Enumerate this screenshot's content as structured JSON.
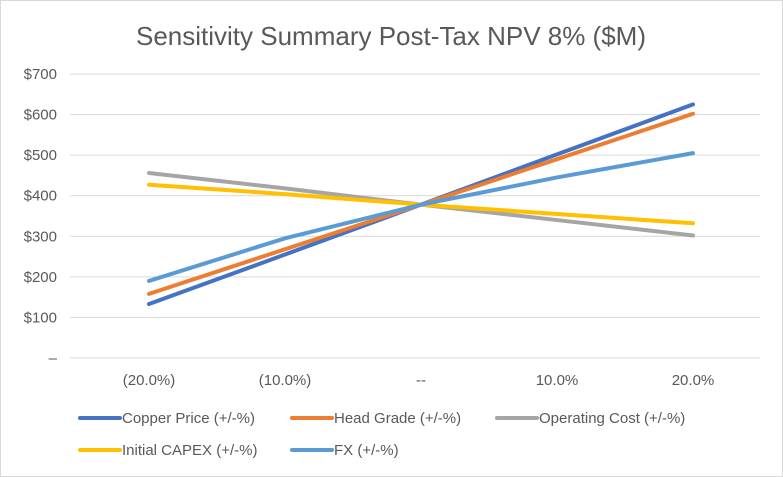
{
  "chart_data": {
    "type": "line",
    "title": "Sensitivity Summary Post-Tax NPV  8% ($M)",
    "xlabel": "",
    "ylabel": "",
    "categories": [
      "(20.0%)",
      "(10.0%)",
      "--",
      "10.0%",
      "20.0%"
    ],
    "y_ticks": [
      "–",
      "$100",
      "$200",
      "$300",
      "$400",
      "$500",
      "$600",
      "$700"
    ],
    "ylim": [
      0,
      700
    ],
    "grid": true,
    "legend_position": "bottom",
    "series": [
      {
        "name": "Copper Price (+/-%)",
        "color": "#4472c4",
        "values": [
          133,
          255,
          378,
          502,
          625
        ]
      },
      {
        "name": "Head Grade (+/-%)",
        "color": "#ed7d31",
        "values": [
          158,
          268,
          378,
          490,
          602
        ]
      },
      {
        "name": "Operating Cost (+/-%)",
        "color": "#a5a5a5",
        "values": [
          456,
          418,
          378,
          340,
          302
        ]
      },
      {
        "name": "Initial CAPEX  (+/-%)",
        "color": "#ffc000",
        "values": [
          427,
          404,
          378,
          355,
          332
        ]
      },
      {
        "name": "FX  (+/-%)",
        "color": "#5b9bd5",
        "values": [
          190,
          295,
          378,
          445,
          505
        ]
      }
    ]
  }
}
